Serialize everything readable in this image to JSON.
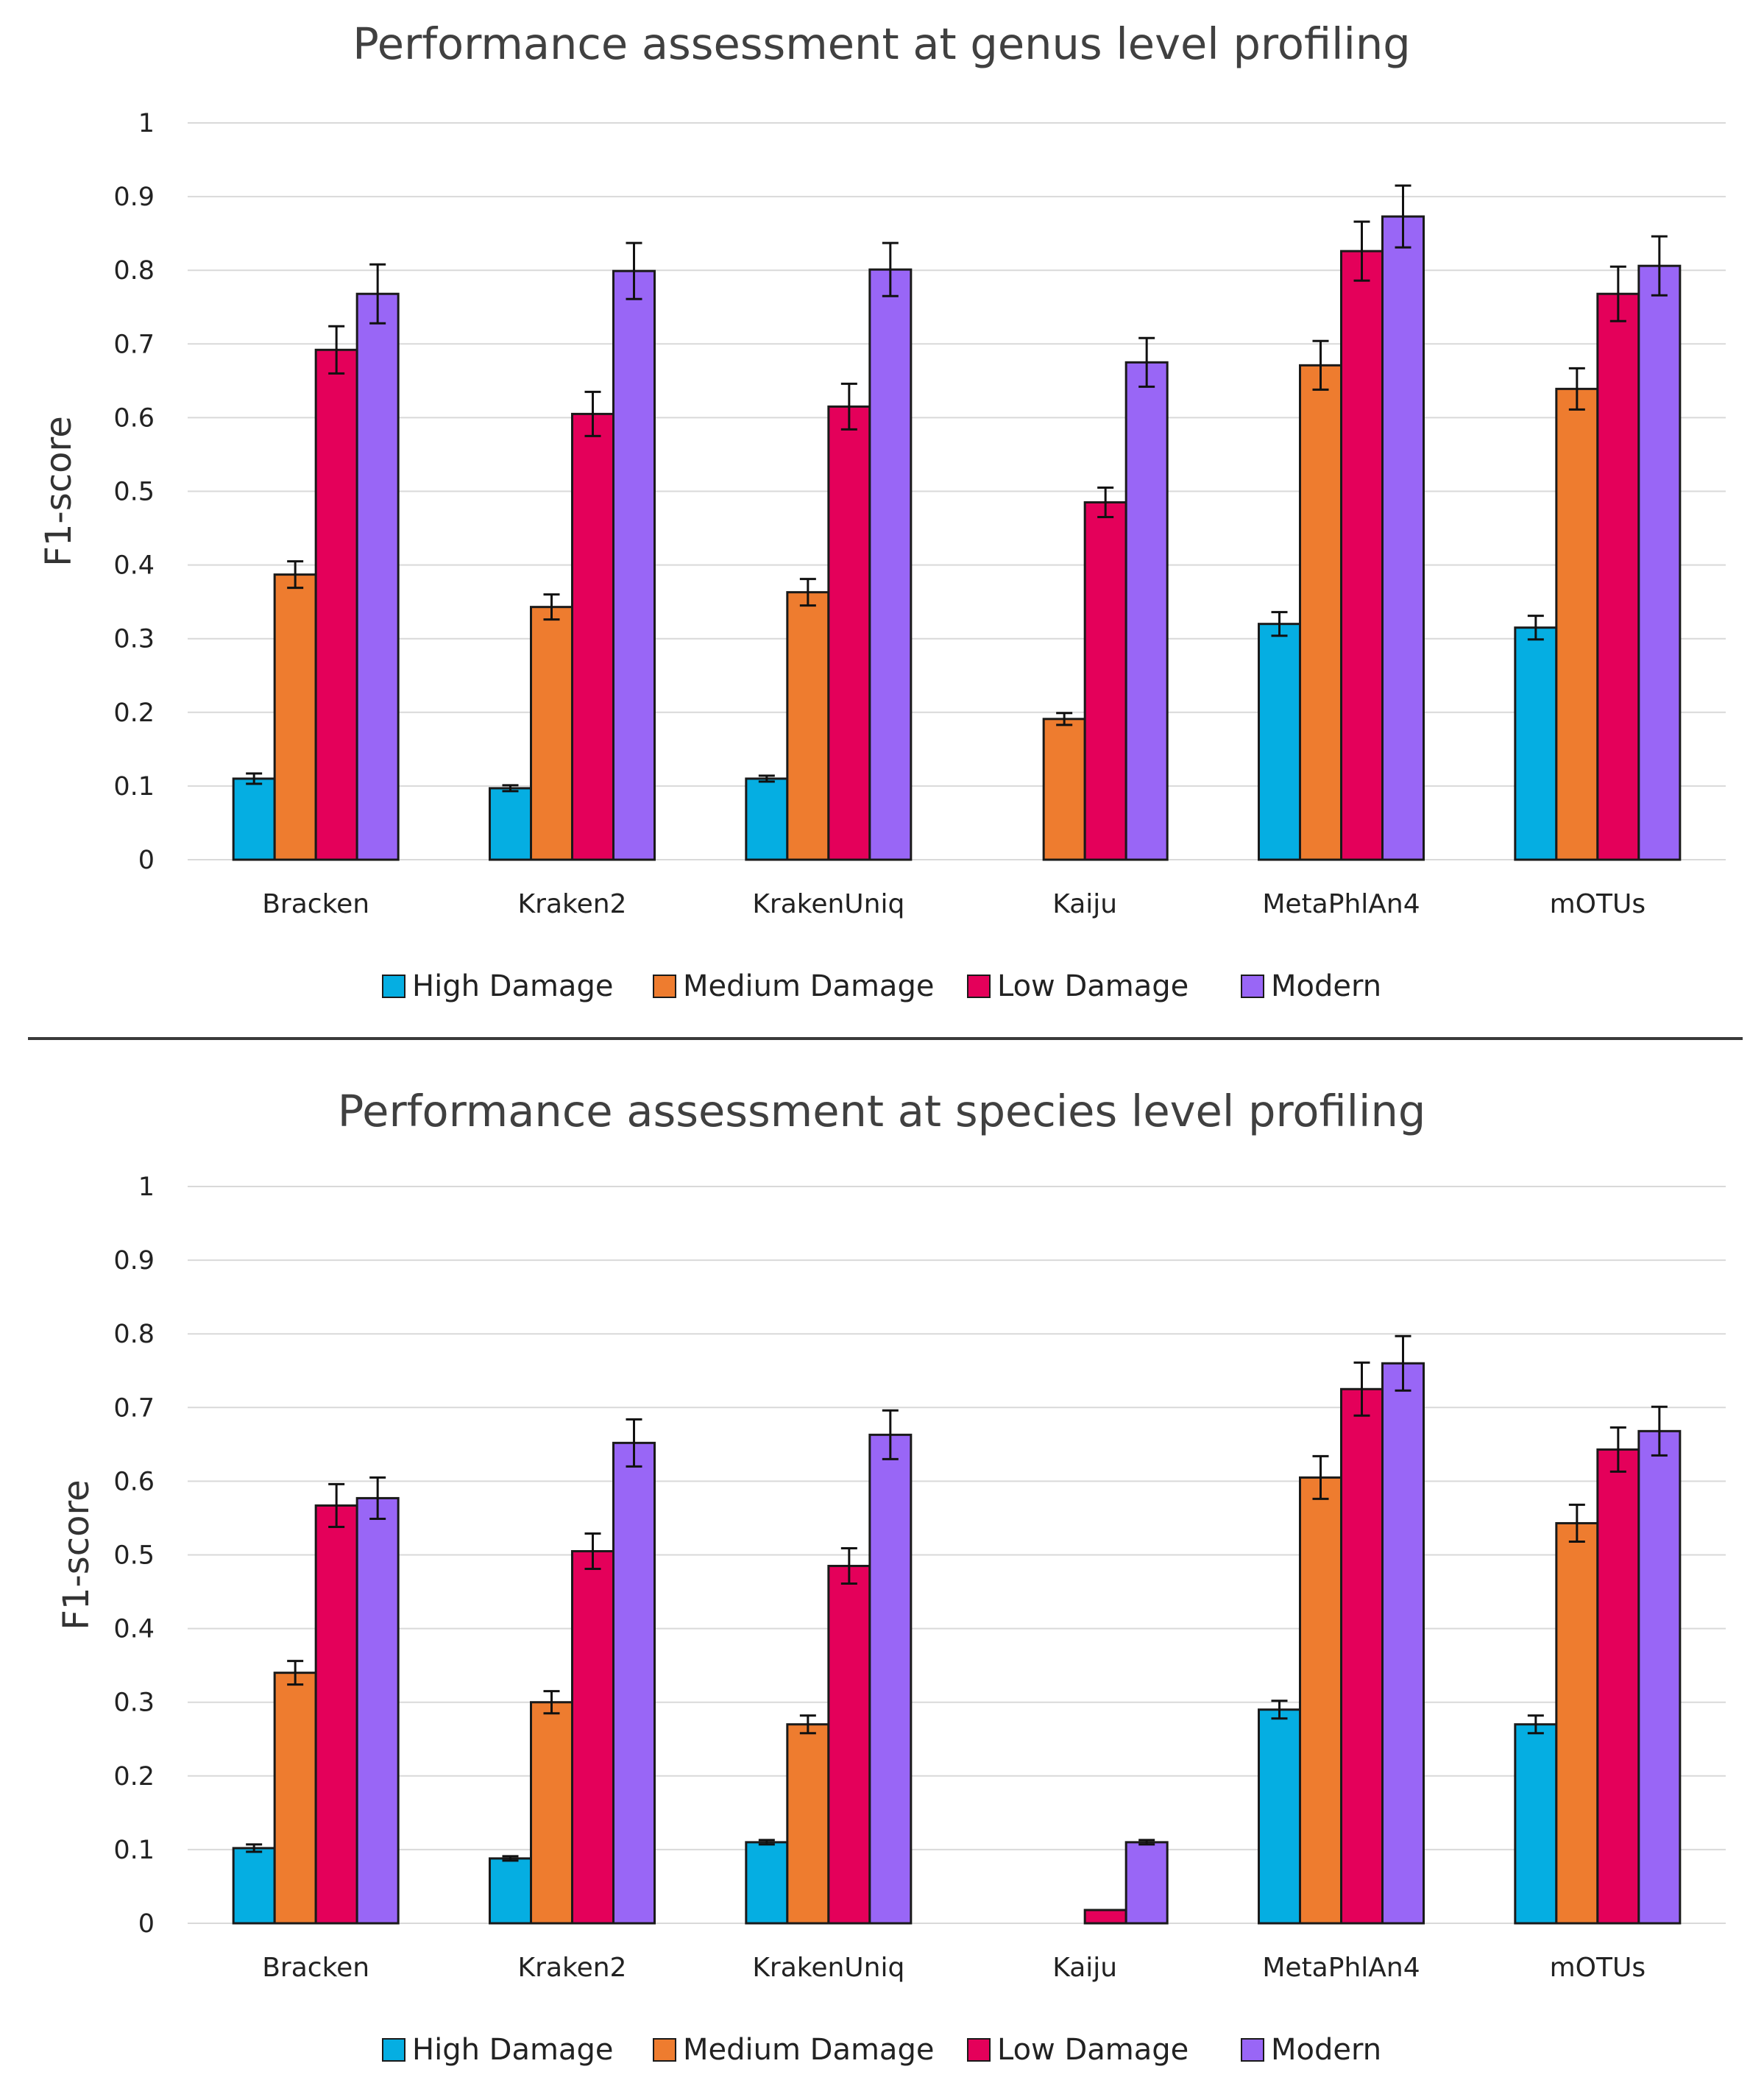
{
  "colors": {
    "High Damage": "#05aee2",
    "Medium Damage": "#ee7c2f",
    "Low Damage": "#e4005a",
    "Modern": "#9966f6"
  },
  "chart_data": [
    {
      "type": "bar",
      "title": "Performance assessment at genus level profiling",
      "ylabel": "F1-score",
      "xlabel": "",
      "ylim": [
        0,
        1
      ],
      "yticks": [
        "0",
        "0.1",
        "0.2",
        "0.3",
        "0.4",
        "0.5",
        "0.6",
        "0.7",
        "0.8",
        "0.9",
        "1"
      ],
      "grid": true,
      "legend": "bottom",
      "categories": [
        "Bracken",
        "Kraken2",
        "KrakenUniq",
        "Kaiju",
        "MetaPhlAn4",
        "mOTUs"
      ],
      "series": [
        {
          "name": "High Damage",
          "values": [
            0.11,
            0.097,
            0.11,
            null,
            0.32,
            0.315
          ],
          "errors": [
            0.007,
            0.004,
            0.004,
            null,
            0.016,
            0.016
          ]
        },
        {
          "name": "Medium Damage",
          "values": [
            0.387,
            0.343,
            0.363,
            0.191,
            0.671,
            0.639
          ],
          "errors": [
            0.018,
            0.017,
            0.018,
            0.008,
            0.033,
            0.028
          ]
        },
        {
          "name": "Low Damage",
          "values": [
            0.692,
            0.605,
            0.615,
            0.485,
            0.826,
            0.768
          ],
          "errors": [
            0.032,
            0.03,
            0.031,
            0.02,
            0.04,
            0.037
          ]
        },
        {
          "name": "Modern",
          "values": [
            0.768,
            0.799,
            0.801,
            0.675,
            0.873,
            0.806
          ],
          "errors": [
            0.04,
            0.038,
            0.036,
            0.033,
            0.042,
            0.04
          ]
        }
      ]
    },
    {
      "type": "bar",
      "title": "Performance assessment at species level profiling",
      "ylabel": "F1-score",
      "xlabel": "",
      "ylim": [
        0,
        1
      ],
      "yticks": [
        "0",
        "0.1",
        "0.2",
        "0.3",
        "0.4",
        "0.5",
        "0.6",
        "0.7",
        "0.8",
        "0.9",
        "1"
      ],
      "grid": true,
      "legend": "bottom",
      "categories": [
        "Bracken",
        "Kraken2",
        "KrakenUniq",
        "Kaiju",
        "MetaPhlAn4",
        "mOTUs"
      ],
      "series": [
        {
          "name": "High Damage",
          "values": [
            0.102,
            0.088,
            0.11,
            null,
            0.29,
            0.27
          ],
          "errors": [
            0.005,
            0.003,
            0.003,
            null,
            0.012,
            0.012
          ]
        },
        {
          "name": "Medium Damage",
          "values": [
            0.34,
            0.3,
            0.27,
            null,
            0.605,
            0.543
          ],
          "errors": [
            0.016,
            0.015,
            0.012,
            null,
            0.029,
            0.025
          ]
        },
        {
          "name": "Low Damage",
          "values": [
            0.567,
            0.505,
            0.485,
            0.018,
            0.725,
            0.643
          ],
          "errors": [
            0.029,
            0.024,
            0.024,
            0.0,
            0.036,
            0.03
          ]
        },
        {
          "name": "Modern",
          "values": [
            0.577,
            0.652,
            0.663,
            0.11,
            0.76,
            0.668
          ],
          "errors": [
            0.028,
            0.032,
            0.033,
            0.003,
            0.037,
            0.033
          ]
        }
      ]
    }
  ]
}
